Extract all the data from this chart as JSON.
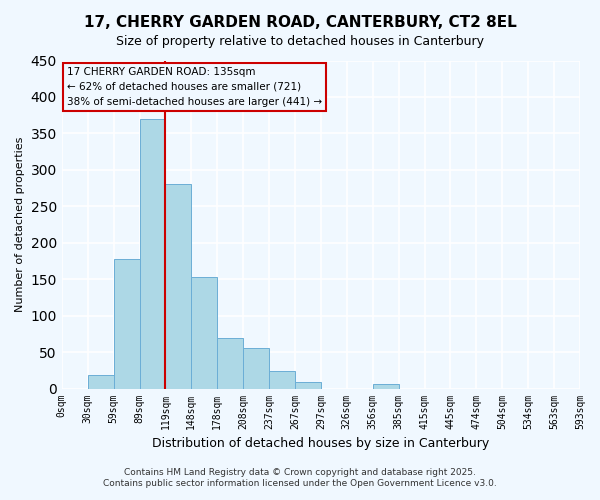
{
  "title": "17, CHERRY GARDEN ROAD, CANTERBURY, CT2 8EL",
  "subtitle": "Size of property relative to detached houses in Canterbury",
  "xlabel": "Distribution of detached houses by size in Canterbury",
  "ylabel": "Number of detached properties",
  "bin_labels": [
    "0sqm",
    "30sqm",
    "59sqm",
    "89sqm",
    "119sqm",
    "148sqm",
    "178sqm",
    "208sqm",
    "237sqm",
    "267sqm",
    "297sqm",
    "326sqm",
    "356sqm",
    "385sqm",
    "415sqm",
    "445sqm",
    "474sqm",
    "504sqm",
    "534sqm",
    "563sqm",
    "593sqm"
  ],
  "bar_heights": [
    0,
    18,
    178,
    370,
    280,
    153,
    70,
    55,
    24,
    9,
    0,
    0,
    6,
    0,
    0,
    0,
    0,
    0,
    0,
    0,
    0
  ],
  "bar_color": "#add8e6",
  "bar_edge_color": "#6baed6",
  "vline_x": 4,
  "vline_color": "#cc0000",
  "ylim": [
    0,
    450
  ],
  "yticks": [
    0,
    50,
    100,
    150,
    200,
    250,
    300,
    350,
    400,
    450
  ],
  "annotation_title": "17 CHERRY GARDEN ROAD: 135sqm",
  "annotation_line1": "← 62% of detached houses are smaller (721)",
  "annotation_line2": "38% of semi-detached houses are larger (441) →",
  "footer_line1": "Contains HM Land Registry data © Crown copyright and database right 2025.",
  "footer_line2": "Contains public sector information licensed under the Open Government Licence v3.0.",
  "background_color": "#f0f8ff",
  "grid_color": "#ffffff"
}
